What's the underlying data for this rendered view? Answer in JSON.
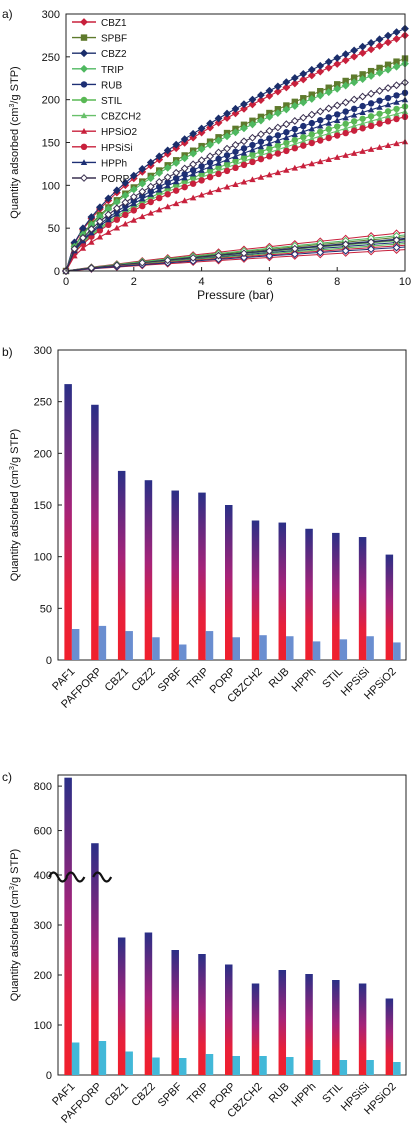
{
  "panel_labels": [
    "a)",
    "b)",
    "c)"
  ],
  "colors": {
    "CBZ1": "#c8203c",
    "SPBF": "#5e7a2c",
    "CBZ2": "#1b2e6b",
    "TRIP": "#4fb860",
    "RUB": "#1d2f74",
    "STIL": "#59b854",
    "CBZCH2": "#68c06a",
    "HPSiO2": "#c8203c",
    "HPSiSi": "#c8203c",
    "HPPh": "#1d2f74",
    "PORP": "#3a3050",
    "bar_top": "#2a2f86",
    "bar_mid": "#a4237a",
    "bar_bottom": "#f0202c",
    "small_bar_b": "#6a8ed0",
    "small_bar_c": "#42b8d8"
  },
  "chart_data": [
    {
      "type": "line",
      "panel": "a)",
      "xlabel": "Pressure (bar)",
      "ylabel": "Quantity adsorbed (cm3/g STP)",
      "xlim": [
        0,
        10
      ],
      "ylim": [
        0,
        300
      ],
      "xticks": [
        "0",
        "2",
        "4",
        "6",
        "8",
        "10"
      ],
      "yticks": [
        "0",
        "50",
        "100",
        "150",
        "200",
        "250",
        "300"
      ],
      "legend": [
        "CBZ1",
        "SPBF",
        "CBZ2",
        "TRIP",
        "RUB",
        "STIL",
        "CBZCH2",
        "HPSiO2",
        "HPSiSi",
        "HPPh",
        "PORP"
      ],
      "legend_position": "top-left",
      "markers": {
        "CBZ1": "diamond",
        "SPBF": "square",
        "CBZ2": "diamond",
        "TRIP": "diamond",
        "RUB": "circle",
        "STIL": "circle",
        "CBZCH2": "triangle",
        "HPSiO2": "triangle",
        "HPSiSi": "circle",
        "HPPh": "triangle",
        "PORP": "diamond-open"
      },
      "series": [
        {
          "name": "CBZ1",
          "upper_at_10bar": 275,
          "lower_at_10bar": 45
        },
        {
          "name": "SPBF",
          "upper_at_10bar": 248,
          "lower_at_10bar": 40
        },
        {
          "name": "CBZ2",
          "upper_at_10bar": 283,
          "lower_at_10bar": 38
        },
        {
          "name": "TRIP",
          "upper_at_10bar": 242,
          "lower_at_10bar": 42
        },
        {
          "name": "RUB",
          "upper_at_10bar": 208,
          "lower_at_10bar": 34
        },
        {
          "name": "STIL",
          "upper_at_10bar": 192,
          "lower_at_10bar": 32
        },
        {
          "name": "CBZCH2",
          "upper_at_10bar": 186,
          "lower_at_10bar": 36
        },
        {
          "name": "HPSiO2",
          "upper_at_10bar": 151,
          "lower_at_10bar": 25
        },
        {
          "name": "HPSiSi",
          "upper_at_10bar": 180,
          "lower_at_10bar": 30
        },
        {
          "name": "HPPh",
          "upper_at_10bar": 200,
          "lower_at_10bar": 28
        },
        {
          "name": "PORP",
          "upper_at_10bar": 220,
          "lower_at_10bar": 37
        }
      ]
    },
    {
      "type": "bar",
      "panel": "b)",
      "ylabel": "Quantity adsorbed (cm3/g STP)",
      "ylim": [
        0,
        300
      ],
      "yticks": [
        "0",
        "50",
        "100",
        "150",
        "200",
        "250",
        "300"
      ],
      "categories": [
        "PAF1",
        "PAFPORP",
        "CBZ1",
        "CBZ2",
        "SPBF",
        "TRIP",
        "PORP",
        "CBZCH2",
        "RUB",
        "HPPh",
        "STIL",
        "HPSiSi",
        "HPSiO2"
      ],
      "series": [
        {
          "values": [
            267,
            247,
            183,
            174,
            164,
            162,
            150,
            135,
            133,
            127,
            123,
            119,
            102
          ]
        },
        {
          "values": [
            30,
            33,
            28,
            22,
            15,
            28,
            22,
            24,
            23,
            18,
            20,
            23,
            17
          ]
        }
      ]
    },
    {
      "type": "bar",
      "panel": "c)",
      "ylabel": "Quantity adsorbed (cm3/g STP)",
      "yticks": [
        "0",
        "100",
        "200",
        "300",
        "400",
        "600",
        "800"
      ],
      "axis_break": [
        400,
        400
      ],
      "categories": [
        "PAF1",
        "PAFPORP",
        "CBZ1",
        "CBZ2",
        "SPBF",
        "TRIP",
        "PORP",
        "CBZCH2",
        "RUB",
        "HPPh",
        "STIL",
        "HPSiSi",
        "HPSiO2"
      ],
      "series": [
        {
          "values": [
            838,
            543,
            275,
            285,
            250,
            242,
            221,
            183,
            210,
            202,
            190,
            183,
            153
          ]
        },
        {
          "values": [
            65,
            68,
            47,
            35,
            34,
            42,
            38,
            38,
            36,
            30,
            30,
            30,
            26
          ]
        }
      ]
    }
  ]
}
